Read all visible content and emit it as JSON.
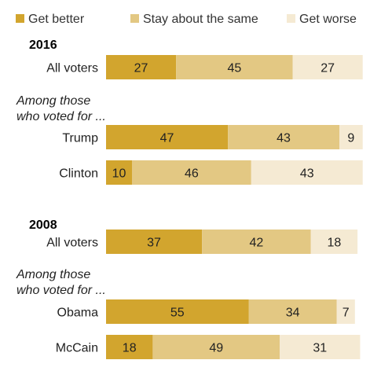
{
  "chart_data": {
    "type": "bar",
    "stacked": true,
    "orientation": "horizontal",
    "xlim": [
      0,
      100
    ],
    "legend": {
      "placement": "top",
      "entries": [
        "Get better",
        "Stay about the same",
        "Get worse"
      ]
    },
    "colors": [
      "#d2a52e",
      "#e3c883",
      "#f5ead3"
    ],
    "series": [
      {
        "name": "Get better",
        "values": [
          27,
          47,
          10,
          37,
          55,
          18
        ]
      },
      {
        "name": "Stay about the same",
        "values": [
          45,
          43,
          46,
          42,
          34,
          49
        ]
      },
      {
        "name": "Get worse",
        "values": [
          27,
          9,
          43,
          18,
          7,
          31
        ]
      }
    ],
    "categories": [
      "All voters",
      "Trump",
      "Clinton",
      "All voters",
      "Obama",
      "McCain"
    ],
    "groups": [
      {
        "title": "2016",
        "subtitle": [
          "Among those",
          "who voted for ..."
        ],
        "rows": [
          0,
          1,
          2
        ]
      },
      {
        "title": "2008",
        "subtitle": [
          "Among those",
          "who voted for ..."
        ],
        "rows": [
          3,
          4,
          5
        ]
      }
    ]
  }
}
